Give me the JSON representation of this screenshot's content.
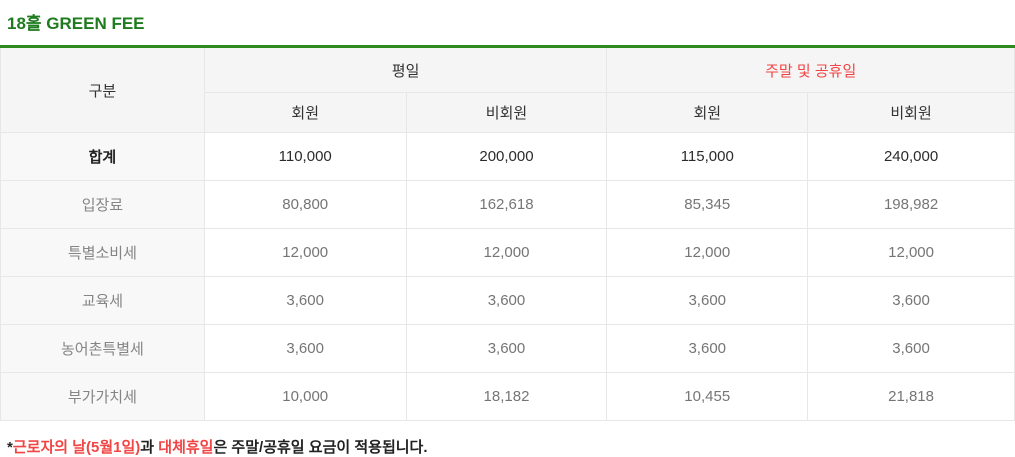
{
  "title": "18홀 GREEN FEE",
  "colors": {
    "title_green": "#1e7b1e",
    "table_top_border_green": "#2f8a1f",
    "weekend_red": "#f14545",
    "header_bg": "#f5f5f5",
    "label_col_bg": "#f8f8f8",
    "grid_border": "#e7e7e7",
    "header_text": "#333333",
    "muted_text": "#757575",
    "emphasis_text": "#222222"
  },
  "table": {
    "corner_header": "구분",
    "groups": [
      {
        "label": "평일"
      },
      {
        "label": "주말 및 공휴일"
      }
    ],
    "sub_headers": [
      "회원",
      "비회원",
      "회원",
      "비회원"
    ],
    "rows": [
      {
        "label": "합계",
        "emphasis": true,
        "values": [
          "110,000",
          "200,000",
          "115,000",
          "240,000"
        ]
      },
      {
        "label": "입장료",
        "emphasis": false,
        "values": [
          "80,800",
          "162,618",
          "85,345",
          "198,982"
        ]
      },
      {
        "label": "특별소비세",
        "emphasis": false,
        "values": [
          "12,000",
          "12,000",
          "12,000",
          "12,000"
        ]
      },
      {
        "label": "교육세",
        "emphasis": false,
        "values": [
          "3,600",
          "3,600",
          "3,600",
          "3,600"
        ]
      },
      {
        "label": "농어촌특별세",
        "emphasis": false,
        "values": [
          "3,600",
          "3,600",
          "3,600",
          "3,600"
        ]
      },
      {
        "label": "부가가치세",
        "emphasis": false,
        "values": [
          "10,000",
          "18,182",
          "10,455",
          "21,818"
        ]
      }
    ]
  },
  "footnote": {
    "segments": [
      {
        "text": "*",
        "style": "dark"
      },
      {
        "text": "근로자의 날(5월1일)",
        "style": "red"
      },
      {
        "text": "과 ",
        "style": "dark"
      },
      {
        "text": "대체휴일",
        "style": "red"
      },
      {
        "text": "은 주말/공휴일 요금이 적용됩니다.",
        "style": "dark"
      }
    ]
  }
}
